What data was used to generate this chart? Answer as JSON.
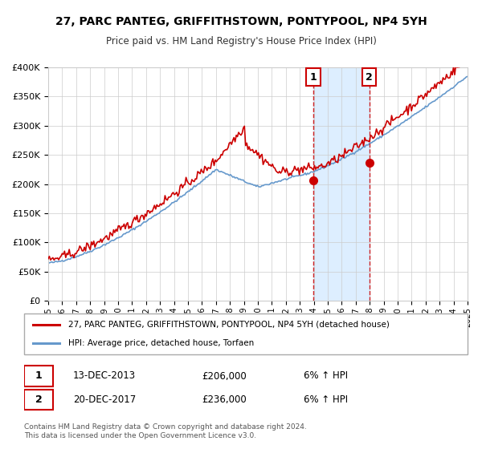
{
  "title": "27, PARC PANTEG, GRIFFITHSTOWN, PONTYPOOL, NP4 5YH",
  "subtitle": "Price paid vs. HM Land Registry's House Price Index (HPI)",
  "legend_label1": "27, PARC PANTEG, GRIFFITHSTOWN, PONTYPOOL, NP4 5YH (detached house)",
  "legend_label2": "HPI: Average price, detached house, Torfaen",
  "footnote1": "Contains HM Land Registry data © Crown copyright and database right 2024.",
  "footnote2": "This data is licensed under the Open Government Licence v3.0.",
  "sale1_date": "13-DEC-2013",
  "sale1_price": "£206,000",
  "sale1_hpi": "6% ↑ HPI",
  "sale2_date": "20-DEC-2017",
  "sale2_price": "£236,000",
  "sale2_hpi": "6% ↑ HPI",
  "sale1_year": 2013.96,
  "sale2_year": 2017.97,
  "sale1_value": 206000,
  "sale2_value": 236000,
  "red_color": "#cc0000",
  "blue_color": "#6699cc",
  "shade_color": "#ddeeff",
  "vline_color": "#cc0000",
  "xmin": 1995,
  "xmax": 2025,
  "ymin": 0,
  "ymax": 400000,
  "yticks": [
    0,
    50000,
    100000,
    150000,
    200000,
    250000,
    300000,
    350000,
    400000
  ]
}
